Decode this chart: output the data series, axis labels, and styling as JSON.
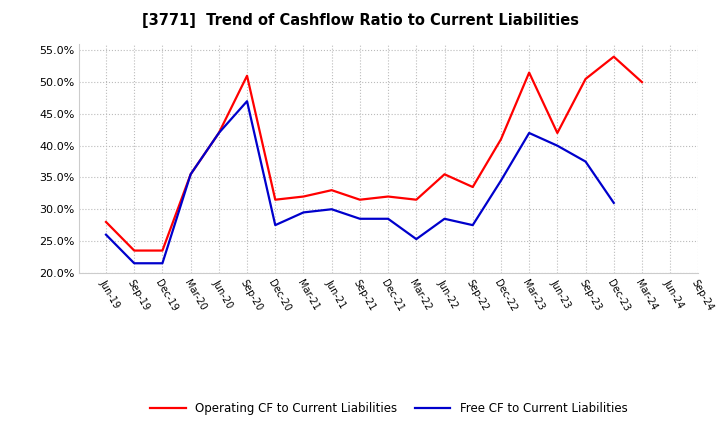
{
  "title": "[3771]  Trend of Cashflow Ratio to Current Liabilities",
  "x_labels": [
    "Jun-19",
    "Sep-19",
    "Dec-19",
    "Mar-20",
    "Jun-20",
    "Sep-20",
    "Dec-20",
    "Mar-21",
    "Jun-21",
    "Sep-21",
    "Dec-21",
    "Mar-22",
    "Jun-22",
    "Sep-22",
    "Dec-22",
    "Mar-23",
    "Jun-23",
    "Sep-23",
    "Dec-23",
    "Mar-24",
    "Jun-24",
    "Sep-24"
  ],
  "operating_cf": [
    0.28,
    0.235,
    0.235,
    0.355,
    0.42,
    0.51,
    0.315,
    0.32,
    0.33,
    0.315,
    0.32,
    0.315,
    0.355,
    0.335,
    0.41,
    0.515,
    0.42,
    0.505,
    0.54,
    0.5,
    null,
    null
  ],
  "free_cf": [
    0.26,
    0.215,
    0.215,
    0.355,
    0.42,
    0.47,
    0.275,
    0.295,
    0.3,
    0.285,
    0.285,
    0.253,
    0.285,
    0.275,
    0.345,
    0.42,
    0.4,
    0.375,
    0.31,
    null,
    null,
    null
  ],
  "ylim": [
    0.2,
    0.56
  ],
  "yticks": [
    0.2,
    0.25,
    0.3,
    0.35,
    0.4,
    0.45,
    0.5,
    0.55
  ],
  "operating_color": "#ff0000",
  "free_color": "#0000cc",
  "legend_operating": "Operating CF to Current Liabilities",
  "legend_free": "Free CF to Current Liabilities",
  "background_color": "#ffffff",
  "plot_bg_color": "#ffffff",
  "grid_color": "#bbbbbb"
}
